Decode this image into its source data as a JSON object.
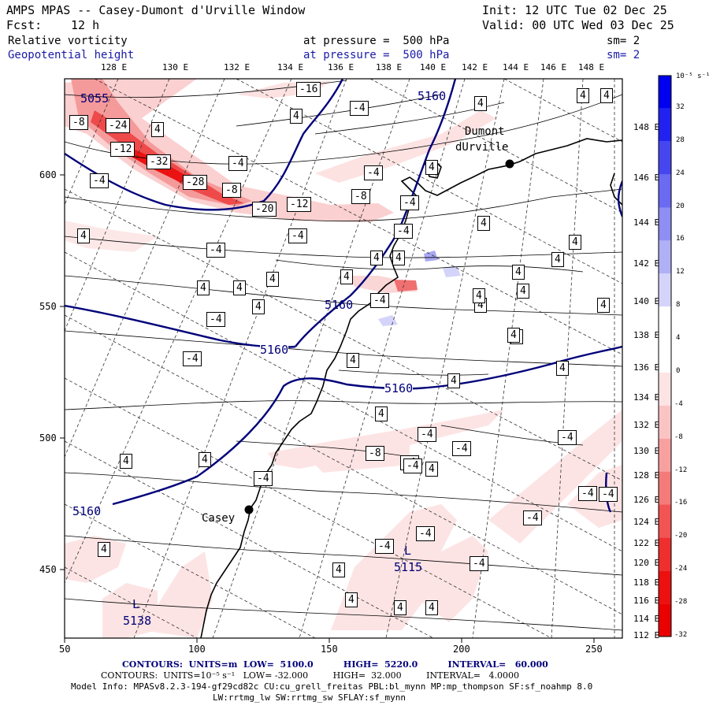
{
  "header": {
    "title": "AMPS MPAS -- Casey-Dumont d'Urville Window",
    "init": "Init: 12 UTC Tue 02 Dec 25",
    "fcst_label": "Fcst:",
    "fcst_value": "12 h",
    "valid": "Valid: 00 UTC Wed 03 Dec 25",
    "field1": "Relative vorticity",
    "field1_level": "at pressure =  500 hPa",
    "field1_sm": "sm= 2",
    "field2": "Geopotential height",
    "field2_level": "at pressure =  500 hPa",
    "field2_sm": "sm= 2"
  },
  "top_lon_labels": [
    "128 E",
    "130 E",
    "132 E",
    "134 E",
    "136 E",
    "138 E",
    "140 E",
    "142 E",
    "144 E",
    "146 E",
    "148 E"
  ],
  "right_lon_labels": [
    "148 E",
    "146 E",
    "144 E",
    "142 E",
    "140 E",
    "138 E",
    "136 E",
    "134 E",
    "132 E",
    "130 E",
    "128 E",
    "126 E",
    "124 E",
    "122 E",
    "120 E",
    "118 E",
    "116 E",
    "114 E",
    "112 E"
  ],
  "x_axis_labels": [
    "50",
    "100",
    "150",
    "200",
    "250"
  ],
  "y_axis_labels": [
    "600",
    "550",
    "500",
    "450"
  ],
  "colorbar": {
    "unit": "10⁻⁵ s⁻¹",
    "labels": [
      "32",
      "28",
      "24",
      "20",
      "16",
      "12",
      "8",
      "4",
      "0",
      "-4",
      "-8",
      "-12",
      "-16",
      "-20",
      "-24",
      "-28",
      "-32"
    ],
    "colors": [
      "#0000f0",
      "#2222f0",
      "#4646f0",
      "#6a6af2",
      "#8e8ef4",
      "#b0b0f6",
      "#d4d4fa",
      "#ffffff",
      "#ffffff",
      "#fde4e4",
      "#fbc4c4",
      "#f8a0a0",
      "#f57a7a",
      "#f25454",
      "#ef2e2e",
      "#ed1010",
      "#ea0000"
    ]
  },
  "locations": {
    "dumont_line1": "Dumont",
    "dumont_line2": "dUrville",
    "casey": "Casey"
  },
  "height_labels": [
    "5055",
    "5160",
    "5160",
    "5160",
    "5160",
    "5160",
    "5160"
  ],
  "lows": [
    {
      "letter": "L",
      "value": "5115"
    },
    {
      "letter": "L",
      "value": "5138"
    }
  ],
  "vort_labels": [
    "-16",
    "-4",
    "-8",
    "-24",
    "4",
    "-12",
    "-32",
    "-28",
    "-8",
    "-20",
    "-12",
    "-4",
    "-8",
    "-4",
    "4",
    "4",
    "-4",
    "-4",
    "-4",
    "-4",
    "4",
    "4",
    "4",
    "4",
    "4",
    "-4",
    "4",
    "4",
    "4",
    "4",
    "4",
    "4",
    "-4",
    "4",
    "4",
    "4",
    "4",
    "4",
    "4",
    "4",
    "4",
    "4",
    "-4",
    "-4",
    "4",
    "-8",
    "-4",
    "-4",
    "4",
    "4",
    "-4",
    "-4",
    "-4",
    "-4",
    "-4",
    "-4",
    "4",
    "4",
    "4",
    "4",
    "4",
    "4",
    "4",
    "4",
    "4",
    "4",
    "-4",
    "-4",
    "-4",
    "-4"
  ],
  "footer": {
    "line1": "CONTOURS:  UNITS=m  LOW=  5100.0          HIGH=  5220.0          INTERVAL=   60.000",
    "line2": "CONTOURS:  UNITS=10⁻⁵ s⁻¹   LOW= -32.000         HIGH=  32.000         INTERVAL=   4.0000",
    "line3": "Model Info: MPASv8.2.3-194-gf29cd82c CU:cu_grell_freitas PBL:bl_mynn MP:mp_thompson SF:sf_noahmp 8.0",
    "line4": "LW:rrtmg_lw SW:rrtmg_sw SFLAY:sf_mynn"
  }
}
